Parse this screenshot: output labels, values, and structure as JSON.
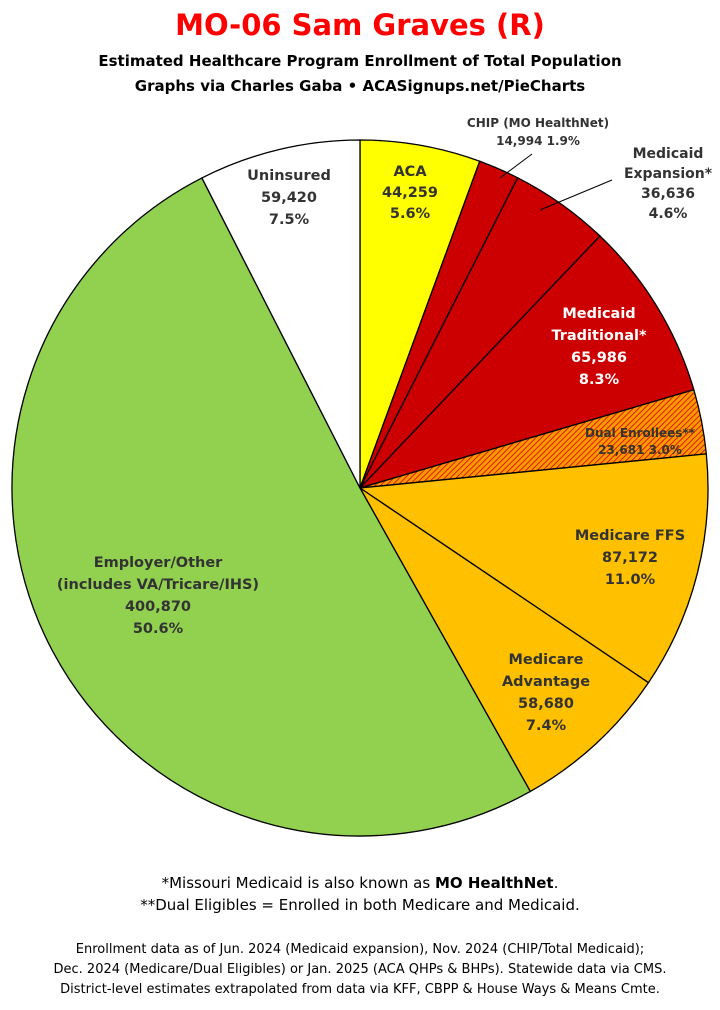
{
  "title": "MO-06 Sam Graves (R)",
  "subtitle": "Estimated Healthcare Program Enrollment of Total Population",
  "credit": "Graphs via Charles Gaba  •  ACASignups.net/PieCharts",
  "chart_data": {
    "type": "pie",
    "start_angle_deg": 0,
    "direction": "clockwise",
    "slices": [
      {
        "key": "aca",
        "label_lines": [
          "ACA"
        ],
        "value": 44259,
        "value_text": "44,259",
        "percent": "5.6%",
        "color": "#ffff00",
        "text_color": "#333333"
      },
      {
        "key": "chip",
        "label_lines": [
          "CHIP (MO HealthNet)"
        ],
        "value": 14994,
        "value_text": "14,994",
        "percent": "1.9%",
        "color": "#cc0000",
        "text_color": "#333333"
      },
      {
        "key": "medicaid_expansion",
        "label_lines": [
          "Medicaid",
          "Expansion*"
        ],
        "value": 36636,
        "value_text": "36,636",
        "percent": "4.6%",
        "color": "#cc0000",
        "text_color": "#333333"
      },
      {
        "key": "medicaid_traditional",
        "label_lines": [
          "Medicaid",
          "Traditional*"
        ],
        "value": 65986,
        "value_text": "65,986",
        "percent": "8.3%",
        "color": "#cc0000",
        "text_color": "#ffffff"
      },
      {
        "key": "dual_enrollees",
        "label_lines": [
          "Dual Enrollees**"
        ],
        "value": 23681,
        "value_text": "23,681",
        "percent": "3.0%",
        "color": "#ff9900",
        "pattern": "hatch",
        "text_color": "#333333"
      },
      {
        "key": "medicare_ffs",
        "label_lines": [
          "Medicare FFS"
        ],
        "value": 87172,
        "value_text": "87,172",
        "percent": "11.0%",
        "color": "#ffc000",
        "text_color": "#333333"
      },
      {
        "key": "medicare_advantage",
        "label_lines": [
          "Medicare",
          "Advantage"
        ],
        "value": 58680,
        "value_text": "58,680",
        "percent": "7.4%",
        "color": "#ffc000",
        "text_color": "#333333"
      },
      {
        "key": "employer_other",
        "label_lines": [
          "Employer/Other",
          "(includes VA/Tricare/IHS)"
        ],
        "value": 400870,
        "value_text": "400,870",
        "percent": "50.6%",
        "color": "#92d050",
        "text_color": "#333333"
      },
      {
        "key": "uninsured",
        "label_lines": [
          "Uninsured"
        ],
        "value": 59420,
        "value_text": "59,420",
        "percent": "7.5%",
        "color": "#ffffff",
        "text_color": "#333333"
      }
    ]
  },
  "footnotes": {
    "line1_prefix": "*Missouri Medicaid is also known as ",
    "line1_bold": "MO HealthNet",
    "line1_suffix": ".",
    "line2": "**Dual Eligibles = Enrolled in both Medicare and Medicaid."
  },
  "sources": [
    "Enrollment data as of Jun. 2024 (Medicaid expansion), Nov. 2024 (CHIP/Total Medicaid);",
    "Dec. 2024 (Medicare/Dual Eligibles) or Jan. 2025 (ACA QHPs & BHPs). Statewide data via CMS.",
    "District-level estimates extrapolated from data via KFF, CBPP & House Ways & Means Cmte."
  ]
}
